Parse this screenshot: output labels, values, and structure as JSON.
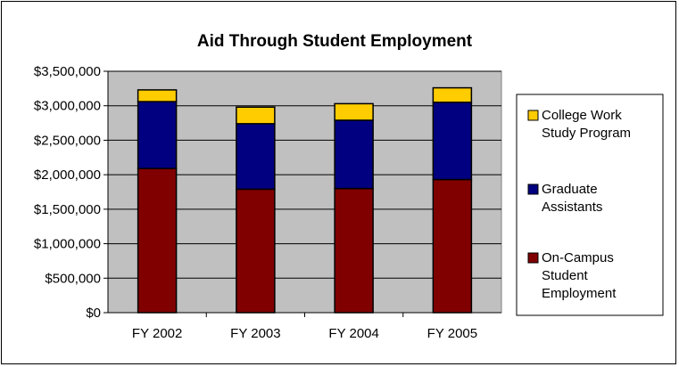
{
  "chart_data": {
    "type": "bar",
    "stacked": true,
    "title": "Aid Through Student Employment",
    "xlabel": "",
    "ylabel": "",
    "categories": [
      "FY 2002",
      "FY 2003",
      "FY 2004",
      "FY 2005"
    ],
    "ylim": [
      0,
      3500000
    ],
    "yticks": [
      0,
      500000,
      1000000,
      1500000,
      2000000,
      2500000,
      3000000,
      3500000
    ],
    "ytick_labels": [
      "$0",
      "$500,000",
      "$1,000,000",
      "$1,500,000",
      "$2,000,000",
      "$2,500,000",
      "$3,000,000",
      "$3,500,000"
    ],
    "grid": true,
    "plot_background": "#c0c0c0",
    "legend_position": "right",
    "series": [
      {
        "name": "On-Campus Student Employment",
        "legend_lines": [
          "On-Campus",
          "Student",
          "Employment"
        ],
        "color": "#800000",
        "values": [
          2090000,
          1790000,
          1800000,
          1930000
        ]
      },
      {
        "name": "Graduate Assistants",
        "legend_lines": [
          "Graduate",
          "Assistants"
        ],
        "color": "#000080",
        "values": [
          970000,
          950000,
          990000,
          1120000
        ]
      },
      {
        "name": "College Work Study Program",
        "legend_lines": [
          "College Work",
          "Study Program"
        ],
        "color": "#ffcc00",
        "values": [
          170000,
          240000,
          240000,
          210000
        ]
      }
    ]
  }
}
